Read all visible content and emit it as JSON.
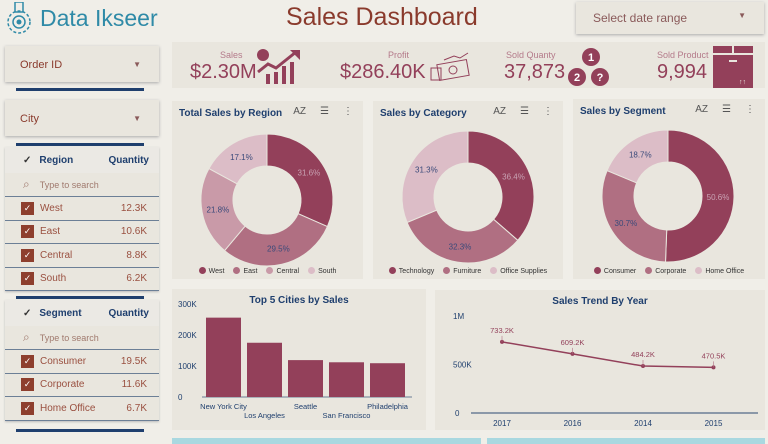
{
  "header": {
    "logo_text": "Data Ikseer",
    "title": "Sales Dashboard",
    "date_range_placeholder": "Select date range"
  },
  "filters": {
    "order_id": "Order ID",
    "city": "City",
    "region": {
      "header": "Region",
      "qty_header": "Quantity",
      "search_placeholder": "Type to search",
      "items": [
        {
          "label": "West",
          "value": "12.3K"
        },
        {
          "label": "East",
          "value": "10.6K"
        },
        {
          "label": "Central",
          "value": "8.8K"
        },
        {
          "label": "South",
          "value": "6.2K"
        }
      ]
    },
    "segment": {
      "header": "Segment",
      "qty_header": "Quantity",
      "search_placeholder": "Type to search",
      "items": [
        {
          "label": "Consumer",
          "value": "19.5K"
        },
        {
          "label": "Corporate",
          "value": "11.6K"
        },
        {
          "label": "Home Office",
          "value": "6.7K"
        }
      ]
    }
  },
  "kpis": {
    "sales_label": "Sales",
    "sales": "$2.30M",
    "profit_label": "Profit",
    "profit": "$286.40K",
    "qty_label": "Sold Quanty",
    "qty": "37,873",
    "product_label": "Sold Product",
    "product": "9,994"
  },
  "colors": {
    "c1": "#93405a",
    "c2": "#b06f82",
    "c3": "#c99aa8",
    "c4": "#dcbdc7",
    "accent": "#1f3f6e"
  },
  "chart_data": [
    {
      "type": "pie",
      "title": "Total Sales by Region",
      "categories": [
        "West",
        "East",
        "Central",
        "South"
      ],
      "values": [
        31.6,
        29.5,
        21.8,
        17.1
      ],
      "labels": [
        "31.6%",
        "29.5%",
        "21.8%",
        "17.1%"
      ]
    },
    {
      "type": "pie",
      "title": "Sales by Category",
      "categories": [
        "Technology",
        "Furniture",
        "Office Supplies"
      ],
      "values": [
        36.4,
        32.3,
        31.3
      ],
      "labels": [
        "36.4%",
        "32.3%",
        "31.3%"
      ]
    },
    {
      "type": "pie",
      "title": "Sales by Segment",
      "categories": [
        "Consumer",
        "Corporate",
        "Home Office"
      ],
      "values": [
        50.6,
        30.7,
        18.7
      ],
      "labels": [
        "50.6%",
        "30.7%",
        "18.7%"
      ]
    },
    {
      "type": "bar",
      "title": "Top 5 Cities by Sales",
      "categories": [
        "New York City",
        "Los Angeles",
        "Seattle",
        "San Francisco",
        "Philadelphia"
      ],
      "values": [
        256000,
        175000,
        119000,
        112000,
        109000
      ],
      "yticks": [
        "0",
        "100K",
        "200K",
        "300K"
      ],
      "ylim": [
        0,
        300000
      ]
    },
    {
      "type": "line",
      "title": "Sales Trend By Year",
      "categories": [
        "2017",
        "2016",
        "2014",
        "2015"
      ],
      "values": [
        733200,
        609200,
        484200,
        470500
      ],
      "labels": [
        "733.2K",
        "609.2K",
        "484.2K",
        "470.5K"
      ],
      "yticks": [
        "0",
        "500K",
        "1M"
      ],
      "ylim": [
        0,
        1000000
      ]
    }
  ]
}
